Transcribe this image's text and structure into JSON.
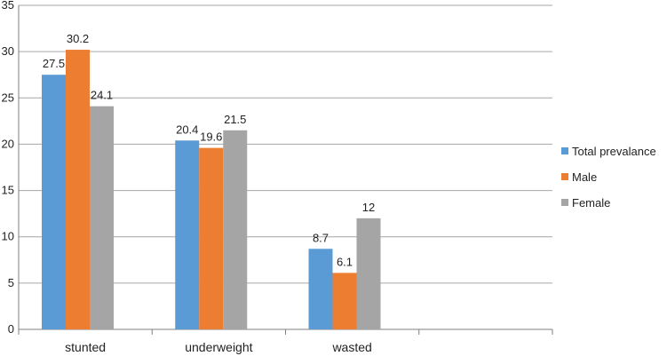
{
  "chart_data": {
    "type": "bar",
    "categories": [
      "stunted",
      "underweight",
      "wasted",
      ""
    ],
    "series": [
      {
        "name": "Total prevalance",
        "values": [
          27.5,
          20.4,
          8.7,
          null
        ],
        "color": "#5b9bd5"
      },
      {
        "name": "Male",
        "values": [
          30.2,
          19.6,
          6.1,
          null
        ],
        "color": "#ed7d31"
      },
      {
        "name": "Female",
        "values": [
          24.1,
          21.5,
          12,
          null
        ],
        "color": "#a5a5a5"
      }
    ],
    "ylim": [
      0,
      35
    ],
    "yticks": [
      0,
      5,
      10,
      15,
      20,
      25,
      30,
      35
    ],
    "grid": true,
    "legend_position": "right",
    "title": "",
    "xlabel": "",
    "ylabel": ""
  }
}
